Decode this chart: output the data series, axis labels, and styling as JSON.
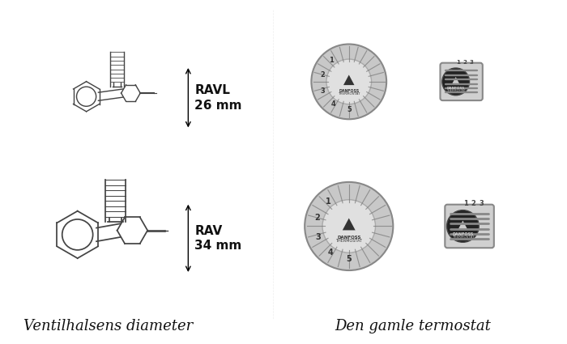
{
  "background_color": "#ffffff",
  "title_left": "Ventilhalsens diameter",
  "title_right": "Den gamle termostat",
  "label_top": "RAVL\n26 mm",
  "label_bottom": "RAV\n34 mm",
  "figsize": [
    7.0,
    4.25
  ],
  "dpi": 100,
  "text_color": "#111111",
  "italic_font": true
}
